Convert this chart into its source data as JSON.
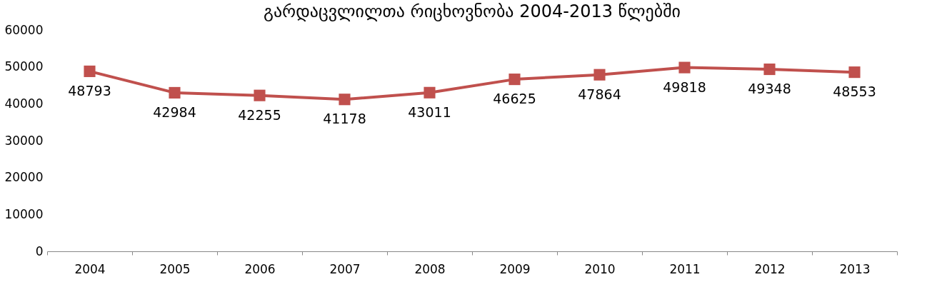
{
  "chart_data": {
    "type": "line",
    "title": "გარდაცვლილთა რიცხოვნობა 2004-2013 წლებში",
    "categories": [
      "2004",
      "2005",
      "2006",
      "2007",
      "2008",
      "2009",
      "2010",
      "2011",
      "2012",
      "2013"
    ],
    "series": [
      {
        "color": "#c0504d",
        "values": [
          48793,
          42984,
          42255,
          41178,
          43011,
          46625,
          47864,
          49818,
          49348,
          48553
        ]
      }
    ],
    "ylim": [
      0,
      60000
    ],
    "yticks": [
      0,
      10000,
      20000,
      30000,
      40000,
      50000,
      60000
    ],
    "grid": false,
    "legend": false,
    "marker": "square",
    "line_style": "solid",
    "data_labels": true
  }
}
